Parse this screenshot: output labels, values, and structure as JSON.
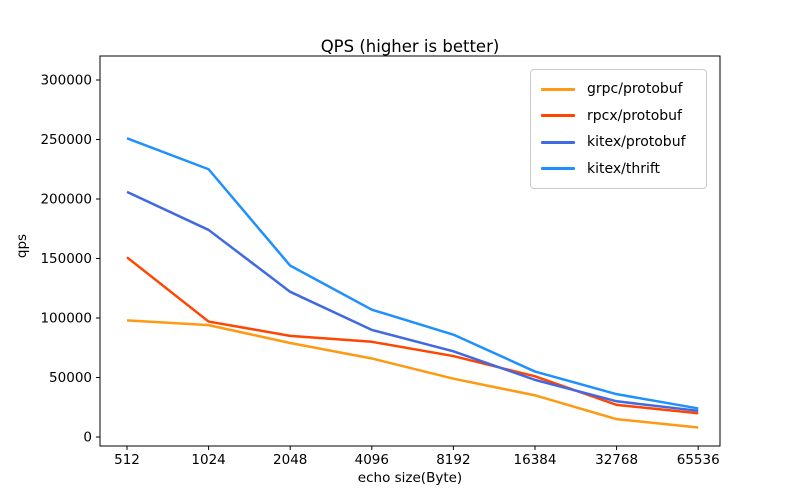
{
  "chart_data": {
    "type": "line",
    "title": "QPS (higher is better)",
    "xlabel": "echo size(Byte)",
    "ylabel": "qps",
    "categories": [
      "512",
      "1024",
      "2048",
      "4096",
      "8192",
      "16384",
      "32768",
      "65536"
    ],
    "yticks": [
      0,
      50000,
      100000,
      150000,
      200000,
      250000,
      300000
    ],
    "ylim": [
      0,
      300000
    ],
    "grid": false,
    "legend_position": "upper right",
    "series": [
      {
        "name": "grpc/protobuf",
        "color": "#ff9914",
        "values": [
          98000,
          94000,
          79000,
          66000,
          49000,
          35000,
          15000,
          8000
        ]
      },
      {
        "name": "rpcx/protobuf",
        "color": "#ff4500",
        "values": [
          151000,
          97000,
          85000,
          80000,
          68000,
          51000,
          27000,
          20000
        ]
      },
      {
        "name": "kitex/protobuf",
        "color": "#4169e1",
        "values": [
          206000,
          174000,
          122000,
          90000,
          72000,
          48000,
          30000,
          22000
        ]
      },
      {
        "name": "kitex/thrift",
        "color": "#1e90ff",
        "values": [
          251000,
          225000,
          144000,
          107000,
          86000,
          55000,
          36000,
          24000
        ]
      }
    ]
  }
}
